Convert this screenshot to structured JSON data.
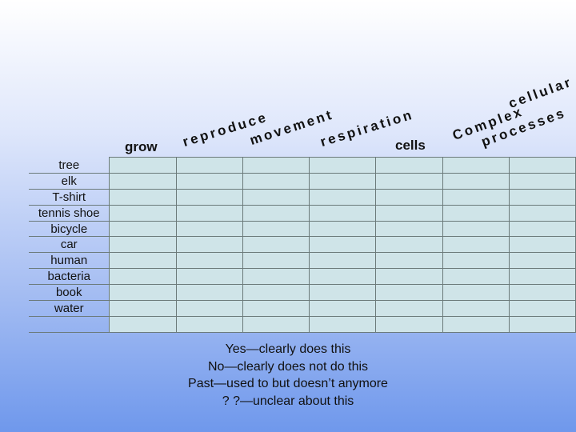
{
  "columns": [
    "grow",
    "reproduce",
    "movement",
    "respiration",
    "cells",
    "cellular",
    "Complex",
    "processes"
  ],
  "rows": [
    "tree",
    "elk",
    "T-shirt",
    "tennis shoe",
    "bicycle",
    "car",
    "human",
    "bacteria",
    "book",
    "water",
    ""
  ],
  "legend": [
    "Yes—clearly does this",
    "No—clearly does not do this",
    "Past—used to but doesn’t anymore",
    "? ?—unclear about this"
  ],
  "colors": {
    "cell_fill": "#cfe4e8",
    "grid_line": "#6b7a7a",
    "bg_bottom": "#6f98ec"
  }
}
